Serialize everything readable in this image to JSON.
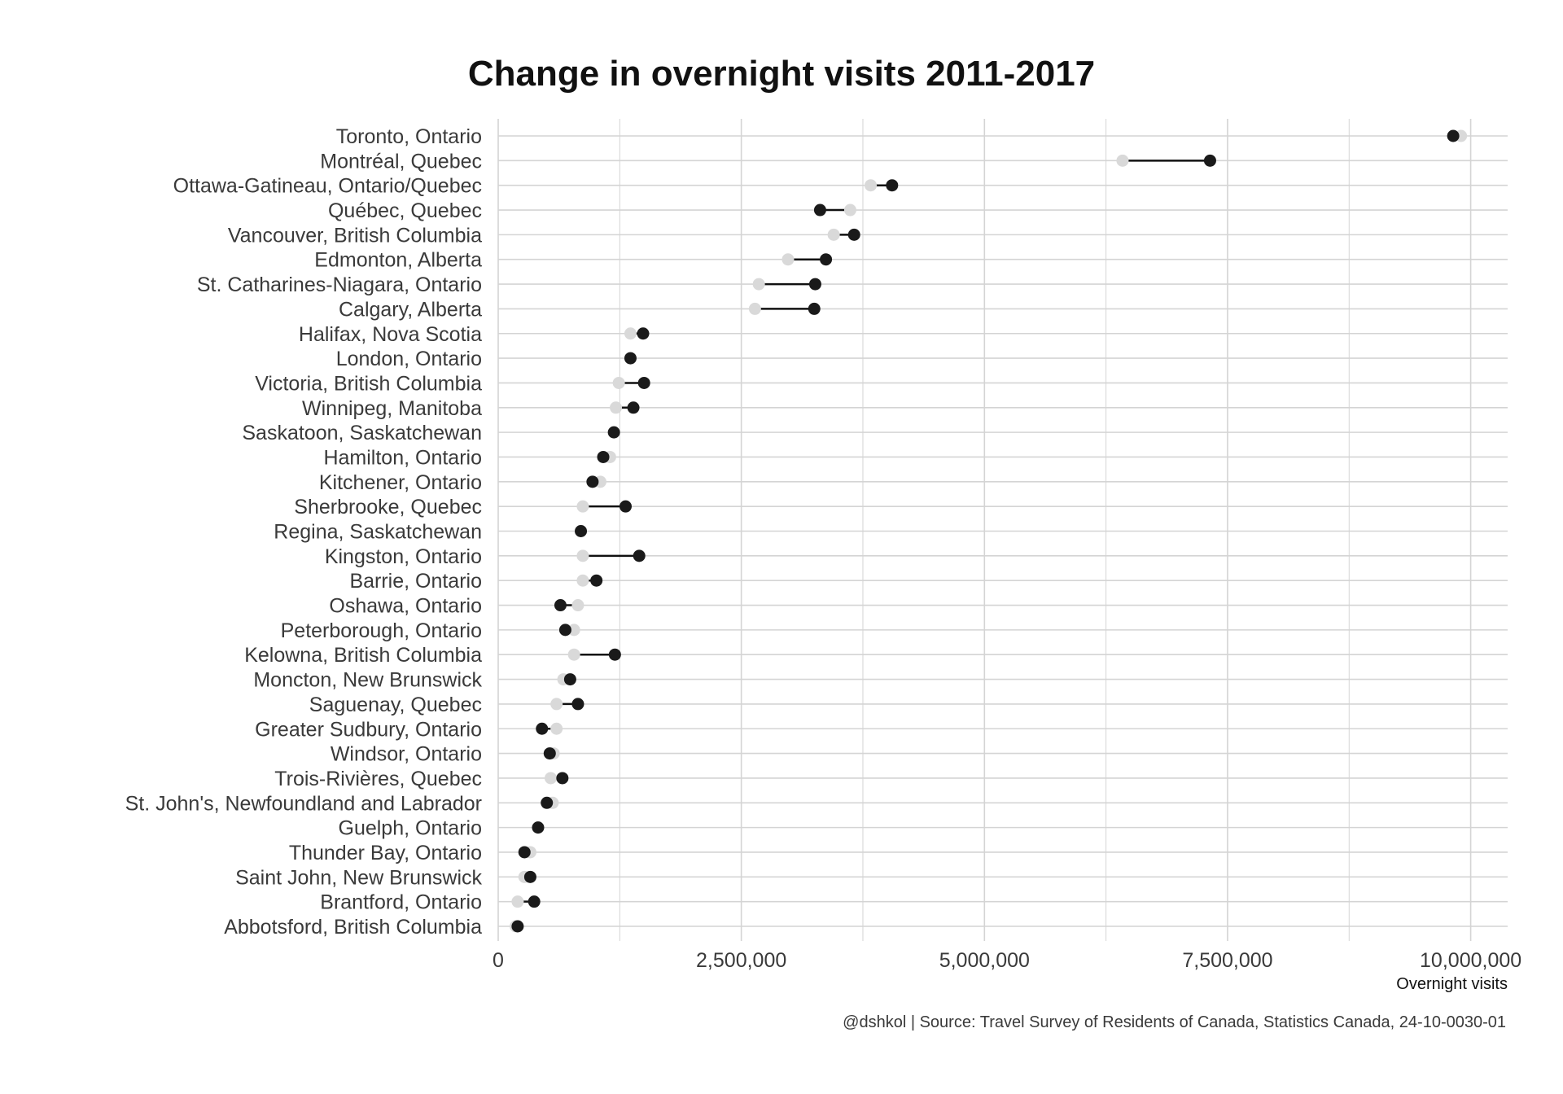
{
  "chart_data": {
    "type": "dumbbell",
    "title": "Change in overnight visits 2011-2017",
    "xlabel": "Overnight visits",
    "caption": "@dshkol | Source: Travel Survey of Residents of Canada, Statistics Canada, 24-10-0030-01",
    "xlim": [
      0,
      10380000
    ],
    "xticks": [
      0,
      2500000,
      5000000,
      7500000,
      10000000
    ],
    "xtick_labels": [
      "0",
      "2,500,000",
      "5,000,000",
      "7,500,000",
      "10,000,000"
    ],
    "grid": true,
    "colors": {
      "start": "#d9d9d9",
      "end": "#1a1a1a",
      "segment": "#111111",
      "grid": "#d4d4d4"
    },
    "series": [
      {
        "key": "start",
        "values": [
          9900000,
          6420000,
          3830000,
          3620000,
          3450000,
          2980000,
          2680000,
          2640000,
          1360000,
          1360000,
          1240000,
          1210000,
          1190000,
          1150000,
          1050000,
          870000,
          850000,
          870000,
          870000,
          820000,
          780000,
          780000,
          670000,
          600000,
          600000,
          570000,
          540000,
          560000,
          410000,
          330000,
          270000,
          200000,
          180000
        ]
      },
      {
        "key": "end",
        "values": [
          9820000,
          7320000,
          4050000,
          3310000,
          3660000,
          3370000,
          3260000,
          3250000,
          1490000,
          1360000,
          1500000,
          1390000,
          1190000,
          1080000,
          970000,
          1310000,
          850000,
          1450000,
          1010000,
          640000,
          690000,
          1200000,
          740000,
          820000,
          450000,
          530000,
          660000,
          500000,
          410000,
          270000,
          330000,
          370000,
          200000
        ]
      }
    ],
    "categories": [
      "Toronto, Ontario",
      "Montréal, Quebec",
      "Ottawa-Gatineau, Ontario/Quebec",
      "Québec, Quebec",
      "Vancouver, British Columbia",
      "Edmonton, Alberta",
      "St. Catharines-Niagara, Ontario",
      "Calgary, Alberta",
      "Halifax, Nova Scotia",
      "London, Ontario",
      "Victoria, British Columbia",
      "Winnipeg, Manitoba",
      "Saskatoon, Saskatchewan",
      "Hamilton, Ontario",
      "Kitchener, Ontario",
      "Sherbrooke, Quebec",
      "Regina, Saskatchewan",
      "Kingston, Ontario",
      "Barrie, Ontario",
      "Oshawa, Ontario",
      "Peterborough, Ontario",
      "Kelowna, British Columbia",
      "Moncton, New Brunswick",
      "Saguenay, Quebec",
      "Greater Sudbury, Ontario",
      "Windsor, Ontario",
      "Trois-Rivières, Quebec",
      "St. John's, Newfoundland and Labrador",
      "Guelph, Ontario",
      "Thunder Bay, Ontario",
      "Saint John, New Brunswick",
      "Brantford, Ontario",
      "Abbotsford, British Columbia"
    ]
  }
}
